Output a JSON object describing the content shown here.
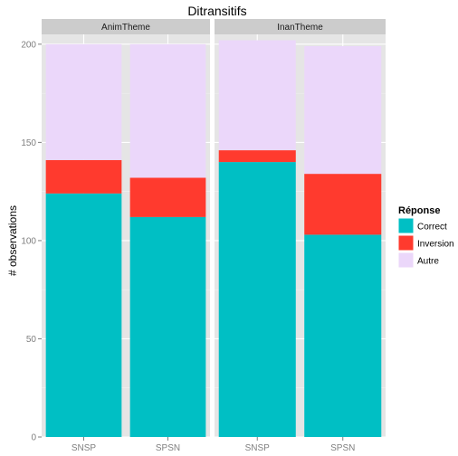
{
  "chart_data": {
    "type": "bar",
    "stacked": true,
    "title": "Ditransitifs",
    "xlabel": "",
    "ylabel": "# observations",
    "ylim": [
      0,
      205
    ],
    "yticks": [
      0,
      50,
      100,
      150,
      200
    ],
    "grid": true,
    "legend": {
      "title": "Réponse",
      "placement": "right",
      "entries": [
        {
          "name": "Correct",
          "color": "#00BFC4"
        },
        {
          "name": "Inversion",
          "color": "#FF3A2E"
        },
        {
          "name": "Autre",
          "color": "#EBD7FA"
        }
      ]
    },
    "panels": [
      {
        "name": "AnimTheme",
        "categories": [
          "SNSP",
          "SPSN"
        ],
        "series": [
          {
            "name": "Correct",
            "values": [
              124,
              112
            ]
          },
          {
            "name": "Inversion",
            "values": [
              17,
              20
            ]
          },
          {
            "name": "Autre",
            "values": [
              59,
              68
            ]
          }
        ]
      },
      {
        "name": "InanTheme",
        "categories": [
          "SNSP",
          "SPSN"
        ],
        "series": [
          {
            "name": "Correct",
            "values": [
              140,
              103
            ]
          },
          {
            "name": "Inversion",
            "values": [
              6,
              31
            ]
          },
          {
            "name": "Autre",
            "values": [
              56,
              65
            ]
          }
        ]
      }
    ]
  },
  "colors": {
    "panel_bg": "#E5E5E5",
    "strip_bg": "#CCCCCC",
    "grid_major": "#FFFFFF",
    "grid_minor": "#F2F2F2",
    "tick_text": "#7F7F7F"
  }
}
